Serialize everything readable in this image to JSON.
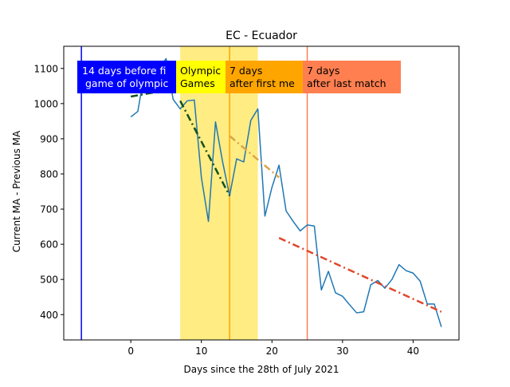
{
  "chart_data": {
    "type": "line",
    "title": "EC - Ecuador",
    "xlabel": "Days since the 28th of July 2021",
    "ylabel": "Current MA - Previous MA",
    "xlim": [
      -9.5,
      46.5
    ],
    "ylim": [
      328,
      1163
    ],
    "x_ticks": [
      0,
      10,
      20,
      30,
      40
    ],
    "y_ticks": [
      400,
      500,
      600,
      700,
      800,
      900,
      1000,
      1100
    ],
    "grid": false,
    "series": [
      {
        "color": "#1f77b4",
        "x": [
          0,
          1,
          2,
          3,
          4,
          5,
          6,
          7,
          8,
          9,
          10,
          11,
          12,
          13,
          14,
          15,
          16,
          17,
          18,
          19,
          20,
          21,
          22,
          23,
          24,
          25,
          26,
          27,
          28,
          29,
          30,
          31,
          32,
          33,
          34,
          35,
          36,
          37,
          38,
          39,
          40,
          41,
          42,
          43,
          44
        ],
        "y": [
          962,
          978,
          1098,
          1112,
          1100,
          1128,
          1012,
          985,
          1008,
          1010,
          790,
          665,
          948,
          835,
          738,
          843,
          834,
          952,
          985,
          680,
          762,
          825,
          695,
          665,
          638,
          655,
          652,
          470,
          523,
          462,
          452,
          428,
          405,
          408,
          485,
          497,
          475,
          500,
          542,
          525,
          518,
          495,
          430,
          430,
          365
        ]
      }
    ],
    "trend_lines": [
      {
        "color": "#14501e",
        "x": [
          0,
          5
        ],
        "y": [
          1020,
          1038
        ]
      },
      {
        "color": "#14501e",
        "x": [
          7,
          14
        ],
        "y": [
          1008,
          738
        ]
      },
      {
        "color": "#daa54a",
        "x": [
          14,
          21
        ],
        "y": [
          908,
          790
        ]
      },
      {
        "color": "#e0472b",
        "x": [
          21,
          44
        ],
        "y": [
          618,
          408
        ]
      }
    ],
    "vertical_lines": [
      {
        "x": -7,
        "color": "#0000ff"
      },
      {
        "x": 14,
        "color": "#ffa500"
      },
      {
        "x": 25,
        "color": "#ff7f50"
      }
    ],
    "shaded_region": {
      "x": [
        7,
        18
      ],
      "color": "#ffe44d"
    },
    "annotations": [
      {
        "text": [
          "14 days before fi",
          " game of olympic"
        ],
        "bg": "#0000ff",
        "text_color": "#ffffff"
      },
      {
        "text": [
          "Olympic",
          "Games"
        ],
        "bg": "#ffff00",
        "text_color": "#000000"
      },
      {
        "text": [
          "7 days",
          "after first me"
        ],
        "bg": "#ffa500",
        "text_color": "#000000"
      },
      {
        "text": [
          "7 days",
          "after last match"
        ],
        "bg": "#ff7f50",
        "text_color": "#000000"
      }
    ]
  }
}
